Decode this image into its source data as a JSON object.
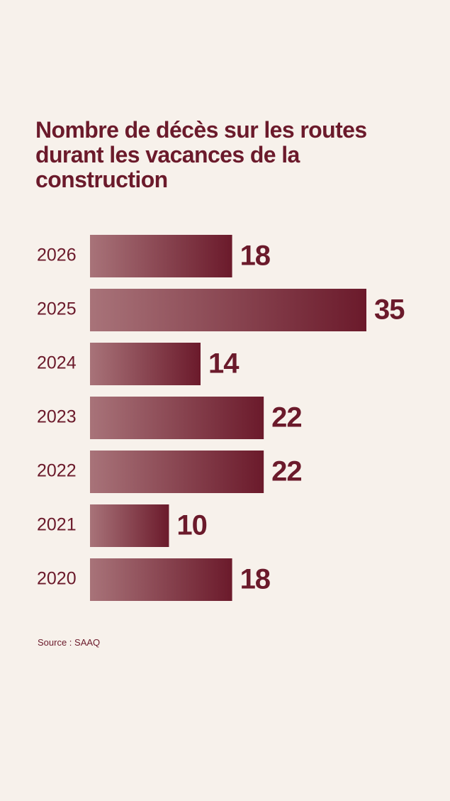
{
  "chart_data": {
    "type": "bar",
    "orientation": "horizontal",
    "title": "Nombre de décès sur les routes durant les vacances de la construction",
    "categories": [
      "2026",
      "2025",
      "2024",
      "2023",
      "2022",
      "2021",
      "2020"
    ],
    "values": [
      18,
      35,
      14,
      22,
      22,
      10,
      18
    ],
    "color": "#6b1a2b",
    "source": "Source : SAAQ"
  }
}
